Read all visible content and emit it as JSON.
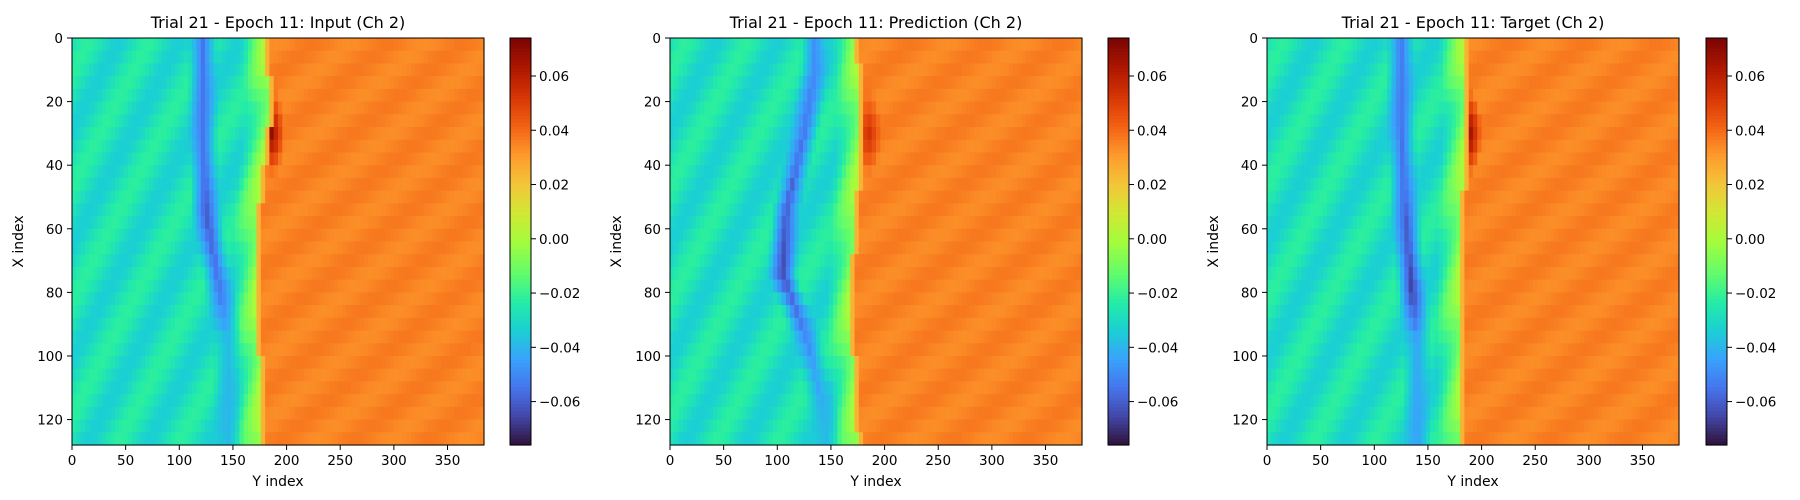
{
  "chart_data": [
    {
      "type": "heatmap",
      "title": "Trial 21 - Epoch 11: Input (Ch 2)",
      "xlabel": "Y index",
      "ylabel": "X index",
      "xlim": [
        0,
        384
      ],
      "ylim": [
        128,
        0
      ],
      "xticks": [
        0,
        50,
        100,
        150,
        200,
        250,
        300,
        350
      ],
      "yticks": [
        0,
        20,
        40,
        60,
        80,
        100,
        120
      ],
      "colormap": "turbo",
      "colorbar": {
        "vmin": -0.076,
        "vmax": 0.074,
        "ticks": [
          -0.06,
          -0.04,
          -0.02,
          0.0,
          0.02,
          0.04,
          0.06
        ],
        "tick_labels": [
          "−0.06",
          "−0.04",
          "−0.02",
          "0.00",
          "0.02",
          "0.04",
          "0.06"
        ]
      },
      "field": {
        "left_value": -0.028,
        "right_value": 0.035,
        "front_y": [
          [
            0,
            178
          ],
          [
            20,
            184
          ],
          [
            40,
            178
          ],
          [
            60,
            172
          ],
          [
            80,
            172
          ],
          [
            100,
            174
          ],
          [
            128,
            175
          ]
        ],
        "negative_band": [
          [
            30,
            122,
            -0.055
          ],
          [
            55,
            125,
            -0.062
          ],
          [
            80,
            138,
            -0.055
          ],
          [
            95,
            145,
            -0.04
          ]
        ],
        "peak": {
          "x": 30,
          "y": 186,
          "value": 0.068
        }
      }
    },
    {
      "type": "heatmap",
      "title": "Trial 21 - Epoch 11: Prediction (Ch 2)",
      "xlabel": "Y index",
      "ylabel": "X index",
      "xlim": [
        0,
        384
      ],
      "ylim": [
        128,
        0
      ],
      "xticks": [
        0,
        50,
        100,
        150,
        200,
        250,
        300,
        350
      ],
      "yticks": [
        0,
        20,
        40,
        60,
        80,
        100,
        120
      ],
      "colormap": "turbo",
      "colorbar": {
        "vmin": -0.076,
        "vmax": 0.074,
        "ticks": [
          -0.06,
          -0.04,
          -0.02,
          0.0,
          0.02,
          0.04,
          0.06
        ],
        "tick_labels": [
          "−0.06",
          "−0.04",
          "−0.02",
          "0.00",
          "0.02",
          "0.04",
          "0.06"
        ]
      },
      "field": {
        "left_value": -0.028,
        "right_value": 0.035,
        "front_y": [
          [
            0,
            172
          ],
          [
            20,
            178
          ],
          [
            40,
            175
          ],
          [
            60,
            172
          ],
          [
            80,
            168
          ],
          [
            100,
            170
          ],
          [
            128,
            175
          ]
        ],
        "negative_band": [
          [
            10,
            135,
            -0.05
          ],
          [
            30,
            125,
            -0.055
          ],
          [
            55,
            108,
            -0.062
          ],
          [
            75,
            105,
            -0.065
          ],
          [
            95,
            128,
            -0.05
          ],
          [
            120,
            145,
            -0.04
          ]
        ],
        "peak": {
          "x": 30,
          "y": 185,
          "value": 0.055
        }
      }
    },
    {
      "type": "heatmap",
      "title": "Trial 21 - Epoch 11: Target (Ch 2)",
      "xlabel": "Y index",
      "ylabel": "X index",
      "xlim": [
        0,
        384
      ],
      "ylim": [
        128,
        0
      ],
      "xticks": [
        0,
        50,
        100,
        150,
        200,
        250,
        300,
        350
      ],
      "yticks": [
        0,
        20,
        40,
        60,
        80,
        100,
        120
      ],
      "colormap": "turbo",
      "colorbar": {
        "vmin": -0.076,
        "vmax": 0.074,
        "ticks": [
          -0.06,
          -0.04,
          -0.02,
          0.0,
          0.02,
          0.04,
          0.06
        ],
        "tick_labels": [
          "−0.06",
          "−0.04",
          "−0.02",
          "0.00",
          "0.02",
          "0.04",
          "0.06"
        ]
      },
      "field": {
        "left_value": -0.028,
        "right_value": 0.035,
        "front_y": [
          [
            0,
            182
          ],
          [
            20,
            186
          ],
          [
            40,
            184
          ],
          [
            60,
            180
          ],
          [
            80,
            180
          ],
          [
            100,
            180
          ],
          [
            128,
            182
          ]
        ],
        "negative_band": [
          [
            25,
            125,
            -0.055
          ],
          [
            50,
            128,
            -0.058
          ],
          [
            80,
            135,
            -0.068
          ],
          [
            95,
            140,
            -0.045
          ]
        ],
        "peak": {
          "x": 30,
          "y": 188,
          "value": 0.07
        }
      }
    }
  ]
}
